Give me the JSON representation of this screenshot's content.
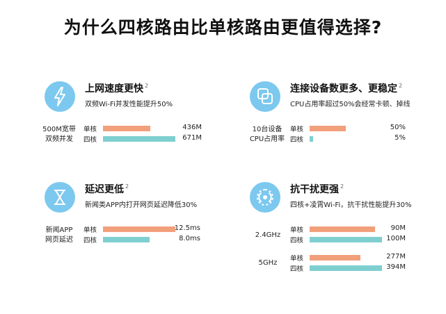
{
  "page": {
    "title": "为什么四核路由比单核路由更值得选择?"
  },
  "colors": {
    "icon_bg": "#7cc8ef",
    "single_bar": "#f2a07c",
    "quad_bar": "#7fcfd0"
  },
  "panels": [
    {
      "id": "speed",
      "icon": "lightning-icon",
      "title": "上网速度更快",
      "sup": "2",
      "subtitle": "双频Wi-Fi并发性能提升50%",
      "groups": [
        {
          "label_lines": [
            "500M宽带",
            "双频并发"
          ],
          "rows": [
            {
              "label": "单核",
              "value_text": "436M",
              "fraction": 0.65
            },
            {
              "label": "四核",
              "value_text": "671M",
              "fraction": 1.0
            }
          ]
        }
      ]
    },
    {
      "id": "devices",
      "icon": "devices-icon",
      "title": "连接设备数更多、更稳定",
      "sup": "2",
      "subtitle": "CPU占用率超过50%会经常卡顿、掉线",
      "groups": [
        {
          "label_lines": [
            "10台设备",
            "CPU占用率"
          ],
          "rows": [
            {
              "label": "单核",
              "value_text": "50%",
              "fraction": 0.5
            },
            {
              "label": "四核",
              "value_text": "5%",
              "fraction": 0.05
            }
          ]
        }
      ]
    },
    {
      "id": "latency",
      "icon": "hourglass-icon",
      "title": "延迟更低",
      "sup": "2",
      "subtitle": "新闻类APP内打开网页延迟降低30%",
      "groups": [
        {
          "label_lines": [
            "新闻APP",
            "网页延迟"
          ],
          "rows": [
            {
              "label": "单核",
              "value_text": "12.5ms",
              "fraction": 1.0
            },
            {
              "label": "四核",
              "value_text": "8.0ms",
              "fraction": 0.64
            }
          ]
        }
      ]
    },
    {
      "id": "interference",
      "icon": "signal-icon",
      "title": "抗干扰更强",
      "sup": "2",
      "subtitle": "四核+凌霄Wi-Fi，抗干扰性能提升30%",
      "groups": [
        {
          "label_lines": [
            "2.4GHz"
          ],
          "rows": [
            {
              "label": "单核",
              "value_text": "90M",
              "fraction": 0.9
            },
            {
              "label": "四核",
              "value_text": "100M",
              "fraction": 1.0
            }
          ]
        },
        {
          "label_lines": [
            "5GHz"
          ],
          "rows": [
            {
              "label": "单核",
              "value_text": "277M",
              "fraction": 0.7
            },
            {
              "label": "四核",
              "value_text": "394M",
              "fraction": 1.0
            }
          ]
        }
      ]
    }
  ]
}
